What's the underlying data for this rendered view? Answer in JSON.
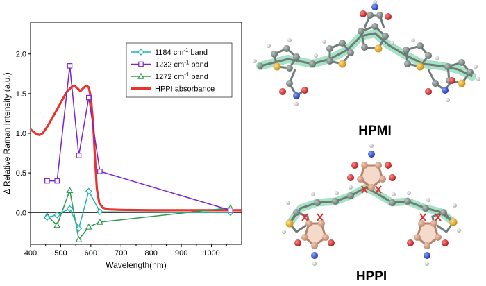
{
  "chart_data": {
    "type": "line",
    "xlabel": "Wavelength(nm)",
    "ylabel": "Δ Relative Raman Intensity (a.u.)",
    "xlim": [
      400,
      1100
    ],
    "ylim": [
      -0.4,
      2.4
    ],
    "xticks": [
      400,
      500,
      600,
      700,
      800,
      900,
      1000
    ],
    "yticks": [
      0.0,
      0.5,
      1.0,
      1.5,
      2.0
    ],
    "ytick_labels": [
      "0.0",
      "0.5",
      "1.0",
      "1.5",
      "2.0"
    ],
    "legend_position": "top-right",
    "zero_line": true,
    "series": [
      {
        "name": "1184 cm⁻¹ band",
        "label_main": "1184 cm",
        "label_sup": "-1",
        "label_tail": " band",
        "color": "#1FB5AE",
        "marker": "diamond",
        "points": [
          [
            455,
            -0.06
          ],
          [
            488,
            -0.03
          ],
          [
            530,
            0.05
          ],
          [
            560,
            -0.2
          ],
          [
            593,
            0.27
          ],
          [
            630,
            0.01
          ],
          [
            1063,
            0.0
          ]
        ]
      },
      {
        "name": "1232 cm⁻¹ band",
        "label_main": "1232 cm",
        "label_sup": "-1",
        "label_tail": " band",
        "color": "#7B22D4",
        "marker": "square",
        "points": [
          [
            455,
            0.4
          ],
          [
            488,
            0.4
          ],
          [
            530,
            1.85
          ],
          [
            560,
            0.72
          ],
          [
            593,
            1.45
          ],
          [
            630,
            0.52
          ],
          [
            1063,
            0.03
          ]
        ]
      },
      {
        "name": "1272 cm⁻¹ band",
        "label_main": "1272 cm",
        "label_sup": "-1",
        "label_tail": " band",
        "color": "#2E9A4E",
        "marker": "triangle",
        "points": [
          [
            455,
            -0.04
          ],
          [
            488,
            -0.16
          ],
          [
            530,
            0.28
          ],
          [
            560,
            -0.34
          ],
          [
            593,
            -0.18
          ],
          [
            630,
            -0.12
          ],
          [
            1063,
            0.06
          ]
        ]
      },
      {
        "name": "HPPI absorbance",
        "label_main": "HPPI absorbance",
        "label_sup": "",
        "label_tail": "",
        "color": "#E8332E",
        "marker": "none",
        "points": [
          [
            400,
            1.05
          ],
          [
            410,
            1.02
          ],
          [
            420,
            0.99
          ],
          [
            430,
            0.98
          ],
          [
            440,
            1.0
          ],
          [
            455,
            1.08
          ],
          [
            470,
            1.18
          ],
          [
            488,
            1.3
          ],
          [
            505,
            1.42
          ],
          [
            520,
            1.52
          ],
          [
            535,
            1.58
          ],
          [
            545,
            1.6
          ],
          [
            555,
            1.57
          ],
          [
            565,
            1.53
          ],
          [
            575,
            1.57
          ],
          [
            585,
            1.6
          ],
          [
            593,
            1.58
          ],
          [
            600,
            1.45
          ],
          [
            608,
            1.1
          ],
          [
            615,
            0.6
          ],
          [
            620,
            0.3
          ],
          [
            628,
            0.12
          ],
          [
            640,
            0.06
          ],
          [
            660,
            0.04
          ],
          [
            700,
            0.035
          ],
          [
            800,
            0.03
          ],
          [
            900,
            0.03
          ],
          [
            1000,
            0.03
          ],
          [
            1100,
            0.03
          ]
        ]
      }
    ]
  },
  "molecules": {
    "top_label": "HPMI",
    "bottom_label": "HPPI",
    "colors": {
      "carbon": "#6E7B78",
      "sulfur": "#E3A41C",
      "oxygen": "#D12A2A",
      "nitrogen": "#2448C8",
      "hydrogen": "#C8C8C8",
      "highlight_green": "#8FDCB5",
      "highlight_tan": "#E7B598",
      "break_mark": "#E0302E"
    }
  }
}
